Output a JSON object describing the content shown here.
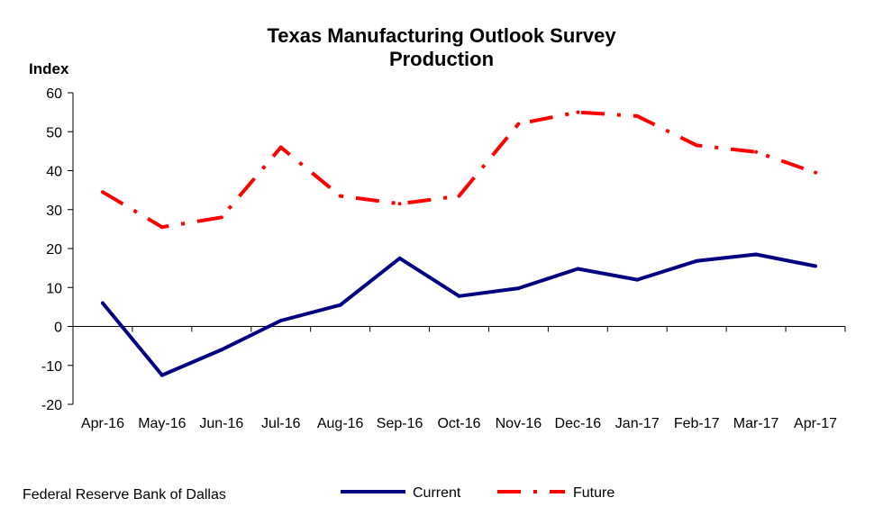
{
  "chart_data": {
    "type": "line",
    "title": "Texas Manufacturing Outlook Survey",
    "subtitle": "Production",
    "ylabel": "Index",
    "xlabel": "",
    "ylim": [
      -20,
      60
    ],
    "yticks": [
      -20,
      -10,
      0,
      10,
      20,
      30,
      40,
      50,
      60
    ],
    "categories": [
      "Apr-16",
      "May-16",
      "Jun-16",
      "Jul-16",
      "Aug-16",
      "Sep-16",
      "Oct-16",
      "Nov-16",
      "Dec-16",
      "Jan-17",
      "Feb-17",
      "Mar-17",
      "Apr-17"
    ],
    "series": [
      {
        "name": "Current",
        "color": "#000080",
        "style": "solid",
        "values": [
          6.0,
          -12.5,
          -6.0,
          1.5,
          5.5,
          17.5,
          7.8,
          9.8,
          14.8,
          12.0,
          16.8,
          18.5,
          15.5
        ]
      },
      {
        "name": "Future",
        "color": "#ff0000",
        "style": "dash-dot",
        "values": [
          34.5,
          25.5,
          28.0,
          46.0,
          33.5,
          31.5,
          33.5,
          52.0,
          55.0,
          54.0,
          46.5,
          44.8,
          39.5
        ]
      }
    ],
    "grid": false,
    "legend_position": "bottom-center"
  },
  "footer": {
    "source": "Federal Reserve Bank of Dallas"
  }
}
